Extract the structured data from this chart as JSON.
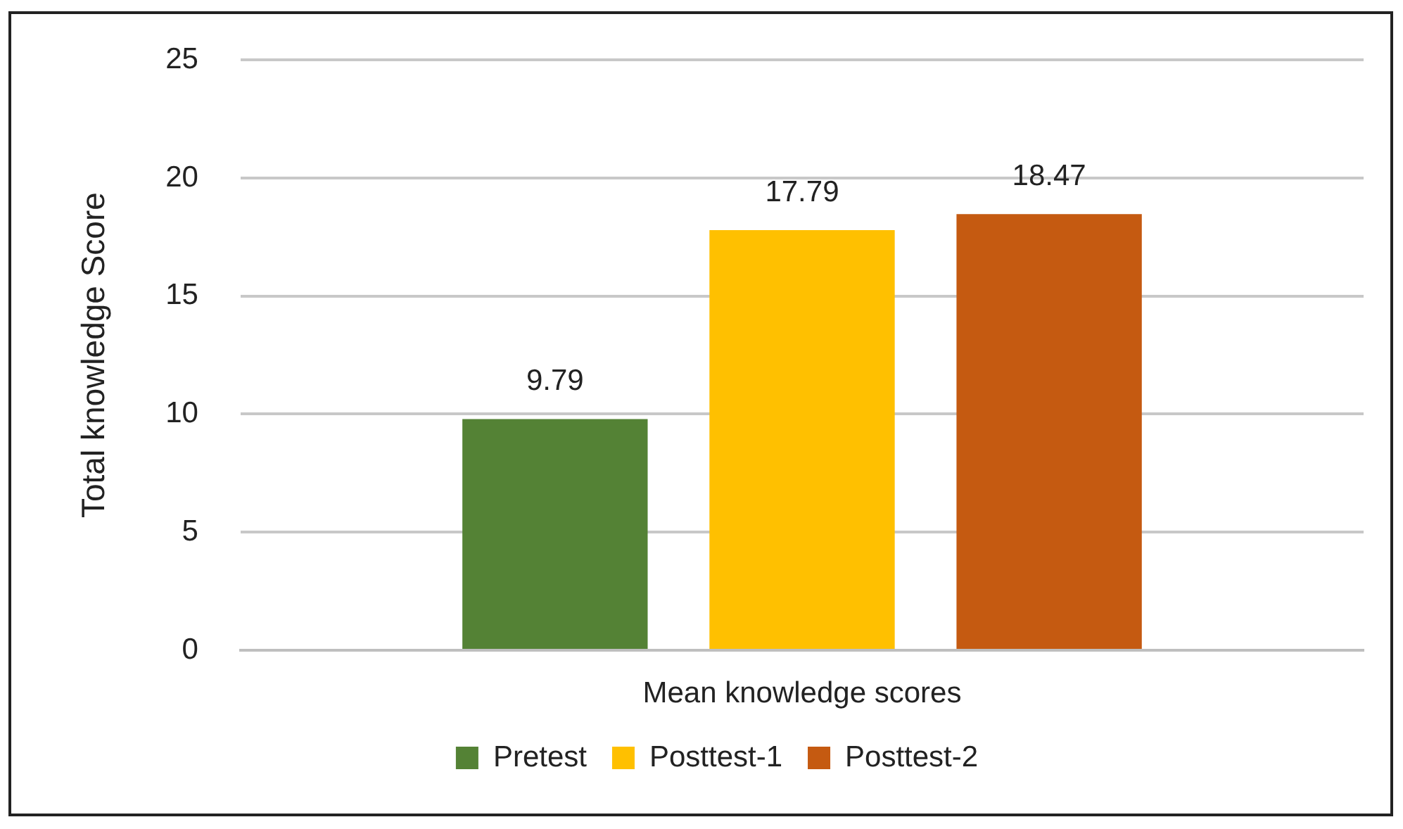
{
  "chart_data": {
    "type": "bar",
    "xlabel": "Mean knowledge scores",
    "ylabel": "Total knowledge Score",
    "categories": [
      null
    ],
    "series": [
      {
        "name": "Pretest",
        "color": "#548235",
        "values": [
          9.79
        ]
      },
      {
        "name": "Posttest-1",
        "color": "#ffc000",
        "values": [
          17.79
        ]
      },
      {
        "name": "Posttest-2",
        "color": "#c55a11",
        "values": [
          18.47
        ]
      }
    ],
    "ylim": [
      0,
      25
    ],
    "yticks": [
      0,
      5,
      10,
      15,
      20,
      25
    ],
    "grid": "y",
    "legend": "bottom",
    "data_labels": true
  }
}
